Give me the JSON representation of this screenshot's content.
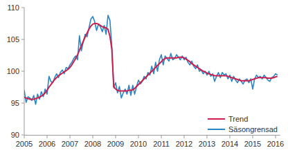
{
  "chart_data": {
    "type": "line",
    "x": [
      2005,
      2005.083,
      2005.167,
      2005.25,
      2005.333,
      2005.417,
      2005.5,
      2005.583,
      2005.667,
      2005.75,
      2005.833,
      2005.917,
      2006,
      2006.083,
      2006.167,
      2006.25,
      2006.333,
      2006.417,
      2006.5,
      2006.583,
      2006.667,
      2006.75,
      2006.833,
      2006.917,
      2007,
      2007.083,
      2007.167,
      2007.25,
      2007.333,
      2007.417,
      2007.5,
      2007.583,
      2007.667,
      2007.75,
      2007.833,
      2007.917,
      2008,
      2008.083,
      2008.167,
      2008.25,
      2008.333,
      2008.417,
      2008.5,
      2008.583,
      2008.667,
      2008.75,
      2008.833,
      2008.917,
      2009,
      2009.083,
      2009.167,
      2009.25,
      2009.333,
      2009.417,
      2009.5,
      2009.583,
      2009.667,
      2009.75,
      2009.833,
      2009.917,
      2010,
      2010.083,
      2010.167,
      2010.25,
      2010.333,
      2010.417,
      2010.5,
      2010.583,
      2010.667,
      2010.75,
      2010.833,
      2010.917,
      2011,
      2011.083,
      2011.167,
      2011.25,
      2011.333,
      2011.417,
      2011.5,
      2011.583,
      2011.667,
      2011.75,
      2011.833,
      2011.917,
      2012,
      2012.083,
      2012.167,
      2012.25,
      2012.333,
      2012.417,
      2012.5,
      2012.583,
      2012.667,
      2012.75,
      2012.833,
      2012.917,
      2013,
      2013.083,
      2013.167,
      2013.25,
      2013.333,
      2013.417,
      2013.5,
      2013.583,
      2013.667,
      2013.75,
      2013.833,
      2013.917,
      2014,
      2014.083,
      2014.167,
      2014.25,
      2014.333,
      2014.417,
      2014.5,
      2014.583,
      2014.667,
      2014.75,
      2014.833,
      2014.917,
      2015,
      2015.083,
      2015.167,
      2015.25,
      2015.333,
      2015.417,
      2015.5,
      2015.583,
      2015.667,
      2015.75,
      2015.833,
      2015.917,
      2016,
      2016.083
    ],
    "series": [
      {
        "name": "Trend",
        "color": "#cc1f4e",
        "values": [
          95.9,
          95.8,
          95.7,
          95.6,
          95.6,
          95.6,
          95.7,
          95.8,
          95.9,
          96.1,
          96.3,
          96.6,
          97.0,
          97.5,
          97.9,
          98.3,
          98.7,
          99.0,
          99.3,
          99.5,
          99.7,
          99.9,
          100.1,
          100.3,
          100.6,
          101.0,
          101.5,
          102.0,
          102.6,
          103.3,
          104.0,
          104.7,
          105.4,
          106.0,
          106.6,
          107.1,
          107.4,
          107.5,
          107.5,
          107.4,
          107.2,
          107.0,
          106.9,
          106.8,
          106.6,
          105.5,
          103.5,
          97.6,
          97.2,
          97.0,
          96.9,
          96.9,
          96.9,
          96.9,
          96.9,
          97.0,
          97.0,
          97.1,
          97.3,
          97.6,
          97.9,
          98.2,
          98.5,
          98.8,
          99.1,
          99.4,
          99.7,
          100.0,
          100.3,
          100.6,
          100.9,
          101.2,
          101.5,
          101.8,
          102.0,
          102.1,
          102.1,
          102.1,
          102.1,
          102.1,
          102.1,
          102.2,
          102.2,
          102.2,
          102.1,
          101.9,
          101.7,
          101.5,
          101.2,
          101.0,
          100.8,
          100.6,
          100.4,
          100.2,
          100.0,
          99.9,
          99.7,
          99.6,
          99.5,
          99.4,
          99.3,
          99.3,
          99.3,
          99.3,
          99.3,
          99.3,
          99.3,
          99.2,
          99.1,
          99.0,
          98.9,
          98.8,
          98.7,
          98.6,
          98.5,
          98.5,
          98.5,
          98.5,
          98.5,
          98.6,
          98.7,
          98.8,
          98.9,
          99.0,
          99.0,
          99.0,
          99.0,
          99.0,
          98.9,
          98.9,
          98.9,
          99.0,
          99.1,
          99.2
        ]
      },
      {
        "name": "Säsongrensad",
        "color": "#2a85c6",
        "values": [
          97.0,
          95.1,
          96.0,
          95.8,
          95.4,
          96.2,
          94.8,
          96.4,
          95.6,
          96.8,
          96.0,
          97.2,
          96.4,
          99.2,
          98.4,
          98.2,
          99.0,
          99.6,
          99.0,
          99.8,
          100.2,
          99.6,
          100.6,
          100.4,
          101.0,
          101.4,
          102.0,
          102.4,
          101.8,
          105.6,
          103.2,
          104.6,
          105.8,
          105.4,
          106.8,
          108.2,
          108.6,
          107.8,
          106.4,
          107.4,
          107.0,
          106.2,
          107.2,
          105.8,
          108.8,
          108.0,
          104.0,
          97.4,
          98.2,
          96.6,
          97.6,
          95.8,
          96.6,
          97.2,
          96.4,
          97.8,
          96.2,
          97.8,
          96.4,
          97.6,
          98.6,
          98.0,
          98.4,
          99.2,
          98.8,
          99.8,
          99.4,
          100.8,
          99.6,
          101.4,
          100.0,
          101.8,
          102.6,
          101.0,
          102.4,
          102.0,
          101.6,
          102.8,
          101.8,
          102.0,
          102.6,
          102.2,
          101.8,
          102.4,
          101.8,
          102.2,
          101.4,
          101.0,
          101.6,
          100.8,
          100.4,
          101.0,
          100.0,
          100.2,
          99.6,
          100.0,
          99.4,
          100.0,
          99.2,
          99.6,
          98.4,
          99.2,
          99.8,
          99.0,
          99.8,
          99.4,
          99.6,
          98.8,
          99.4,
          98.4,
          99.2,
          98.6,
          98.2,
          98.8,
          98.4,
          98.0,
          98.6,
          98.8,
          98.2,
          98.8,
          97.2,
          98.8,
          99.4,
          99.0,
          99.2,
          98.8,
          99.4,
          99.0,
          98.6,
          98.4,
          99.0,
          99.2,
          99.6,
          99.4
        ]
      }
    ],
    "xlim": [
      2005,
      2016.2
    ],
    "xticks": [
      2005,
      2006,
      2007,
      2008,
      2009,
      2010,
      2011,
      2012,
      2013,
      2014,
      2015,
      2016
    ],
    "ylim": [
      90,
      110
    ],
    "yticks": [
      90,
      95,
      100,
      105,
      110
    ],
    "grid": false,
    "legend": "lower right"
  }
}
